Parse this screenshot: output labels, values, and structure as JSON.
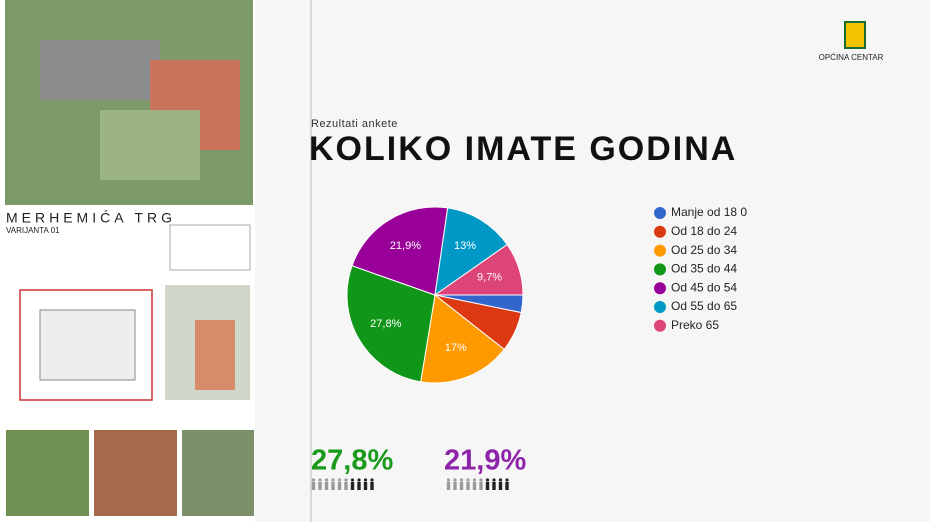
{
  "board": {
    "title": "MERHEMIĆA TRG",
    "subtitle": "VARIJANTA 01"
  },
  "header": {
    "logo_text": "OPĆINA CENTAR",
    "kicker": "Rezultati ankete"
  },
  "chart_data": {
    "type": "pie",
    "title": "KOLIKO IMATE GODINA",
    "categories": [
      "Manje od 18 0",
      "Od 18 do 24",
      "Od 25 do 34",
      "Od 35 do 44",
      "Od 45 do 54",
      "Od 55 do 65",
      "Preko 65"
    ],
    "values": [
      3.2,
      7.4,
      17,
      27.8,
      21.9,
      13,
      9.7
    ],
    "value_labels": [
      null,
      null,
      "17%",
      "27,8%",
      "21,9%",
      "13%",
      "9,7%"
    ],
    "colors": [
      "#3366cc",
      "#dc3912",
      "#ff9900",
      "#109618",
      "#990099",
      "#0099c6",
      "#dd4477"
    ],
    "legend": "right"
  },
  "highlights": [
    {
      "text": "27,8%",
      "color": "#1a9a1a"
    },
    {
      "text": "21,9%",
      "color": "#8e24aa"
    }
  ]
}
